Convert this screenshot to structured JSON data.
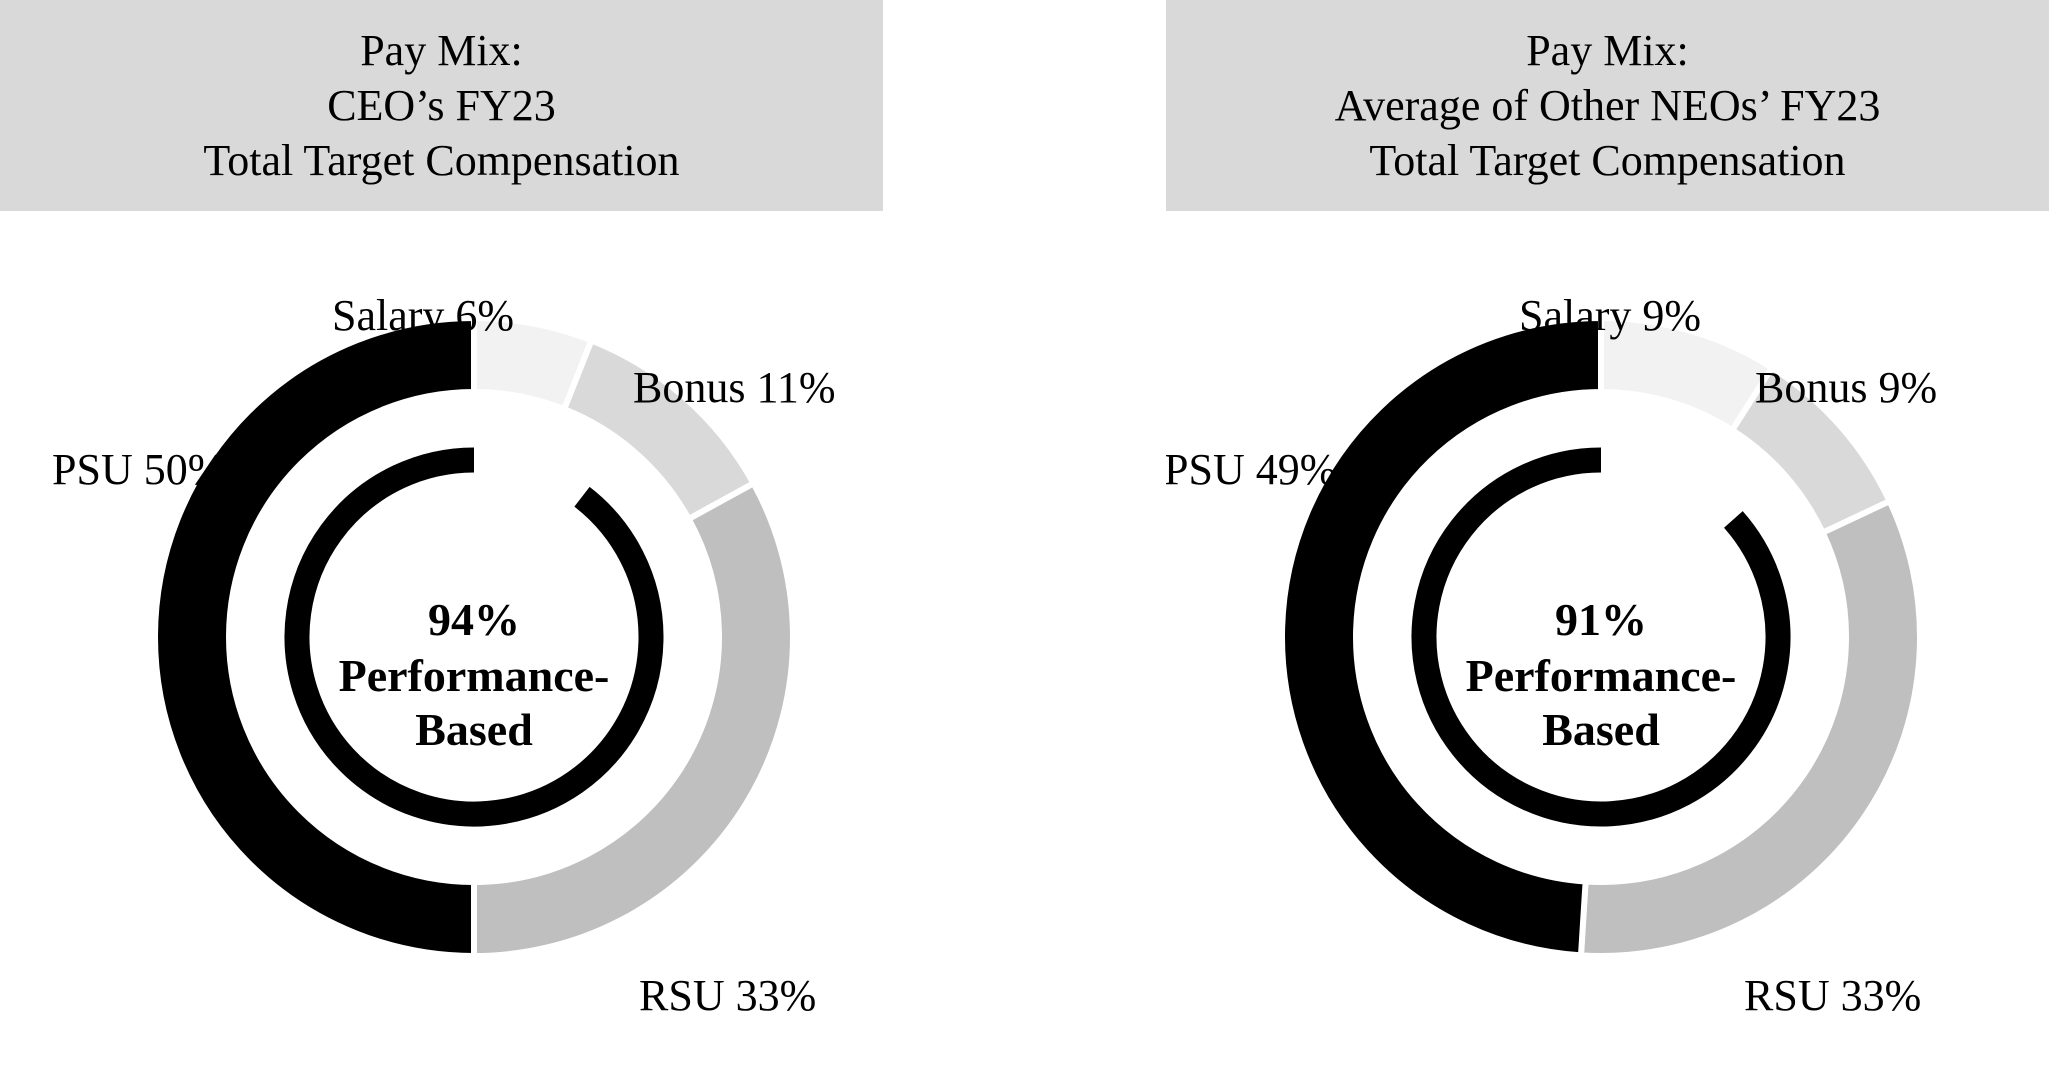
{
  "chart_data": [
    {
      "type": "pie",
      "variant": "donut",
      "title_lines": [
        "Pay Mix:",
        "CEO’s FY23",
        "Total Target Compensation"
      ],
      "slices": [
        {
          "name": "Salary",
          "value": 6,
          "label": "Salary 6%",
          "color": "#f2f2f2"
        },
        {
          "name": "Bonus",
          "value": 11,
          "label": "Bonus 11%",
          "color": "#d9d9d9"
        },
        {
          "name": "RSU",
          "value": 33,
          "label": "RSU 33%",
          "color": "#bfbfbf"
        },
        {
          "name": "PSU",
          "value": 50,
          "label": "PSU 50%",
          "color": "#000000"
        }
      ],
      "performance_based_pct": 94,
      "center_lines": [
        "94%",
        "Performance-",
        "Based"
      ]
    },
    {
      "type": "pie",
      "variant": "donut",
      "title_lines": [
        "Pay Mix:",
        "Average of Other NEOs’ FY23",
        "Total Target Compensation"
      ],
      "slices": [
        {
          "name": "Salary",
          "value": 9,
          "label": "Salary 9%",
          "color": "#f2f2f2"
        },
        {
          "name": "Bonus",
          "value": 9,
          "label": "Bonus 9%",
          "color": "#d9d9d9"
        },
        {
          "name": "RSU",
          "value": 33,
          "label": "RSU 33%",
          "color": "#bfbfbf"
        },
        {
          "name": "PSU",
          "value": 49,
          "label": "PSU 49%",
          "color": "#000000"
        }
      ],
      "performance_based_pct": 91,
      "center_lines": [
        "91%",
        "Performance-",
        "Based"
      ]
    }
  ]
}
